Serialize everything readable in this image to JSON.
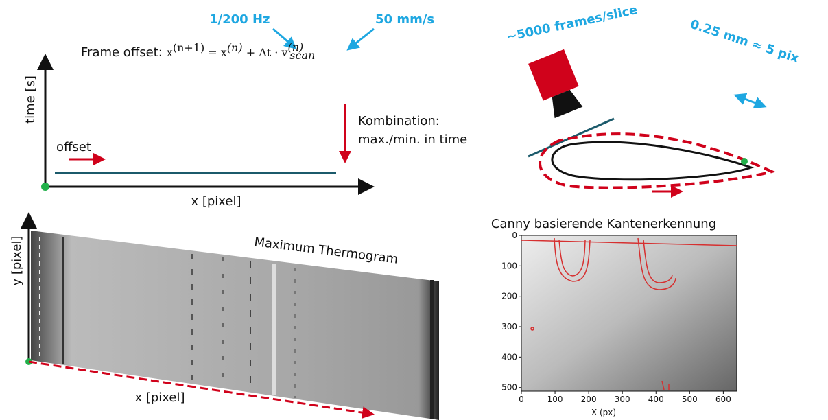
{
  "formula_block": {
    "rate": "1/200 Hz",
    "speed": "50 mm/s",
    "label": "Frame offset:",
    "lhs": "x",
    "lhs_sup": "(n+1)",
    "eq": " = x",
    "term_sup": "(n)",
    "plus": " + Δt · v",
    "v_sup": "(n)",
    "v_sub": "scan"
  },
  "timeline": {
    "y_label": "time [s]",
    "x_label": "x [pixel]",
    "offset": "offset",
    "combination_1": "Kombination:",
    "combination_2": "max./min. in time"
  },
  "camera": {
    "frames": "~5000 frames/slice",
    "resolution": "0.25 mm ≈ 5 pix"
  },
  "thermogram": {
    "title": "Maximum Thermogram",
    "y_label": "y [pixel]",
    "x_label": "x [pixel]"
  },
  "canny": {
    "title": "Canny basierende Kantenerkennung",
    "x_label": "X (px)",
    "xlim": [
      0,
      640
    ],
    "ylim": [
      0,
      512
    ],
    "xticks": [
      0,
      100,
      200,
      300,
      400,
      500,
      600
    ],
    "yticks": [
      0,
      100,
      200,
      300,
      400,
      500
    ]
  }
}
